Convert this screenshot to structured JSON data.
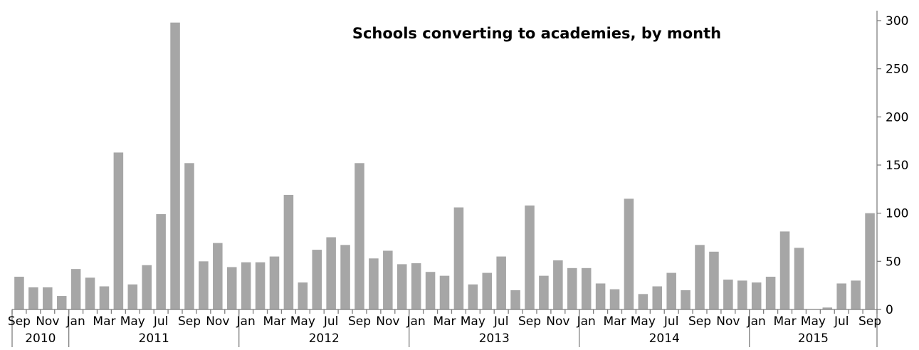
{
  "chart_data": {
    "type": "bar",
    "title": "Schools converting to academies, by month",
    "bar_color": "#a6a6a6",
    "axis_color": "#7f7f7f",
    "y_axis_position": "right",
    "grid": false,
    "legend": "none",
    "ylim": [
      0,
      300
    ],
    "yticks": [
      "0",
      "50",
      "100",
      "150",
      "200",
      "250",
      "300"
    ],
    "categories": [
      "Sep",
      "Oct",
      "Nov",
      "Dec",
      "Jan",
      "Feb",
      "Mar",
      "Apr",
      "May",
      "Jun",
      "Jul",
      "Aug",
      "Sep",
      "Oct",
      "Nov",
      "Dec",
      "Jan",
      "Feb",
      "Mar",
      "Apr",
      "May",
      "Jun",
      "Jul",
      "Aug",
      "Sep",
      "Oct",
      "Nov",
      "Dec",
      "Jan",
      "Feb",
      "Mar",
      "Apr",
      "May",
      "Jun",
      "Jul",
      "Aug",
      "Sep",
      "Oct",
      "Nov",
      "Dec",
      "Jan",
      "Feb",
      "Mar",
      "Apr",
      "May",
      "Jun",
      "Jul",
      "Aug",
      "Sep",
      "Oct",
      "Nov",
      "Dec",
      "Jan",
      "Feb",
      "Mar",
      "Apr",
      "May",
      "Jun",
      "Jul",
      "Aug",
      "Sep"
    ],
    "x_tick_labels": [
      "Sep",
      "",
      "Nov",
      "",
      "Jan",
      "",
      "Mar",
      "",
      "May",
      "",
      "Jul",
      "",
      "Sep",
      "",
      "Nov",
      "",
      "Jan",
      "",
      "Mar",
      "",
      "May",
      "",
      "Jul",
      "",
      "Sep",
      "",
      "Nov",
      "",
      "Jan",
      "",
      "Mar",
      "",
      "May",
      "",
      "Jul",
      "",
      "Sep",
      "",
      "Nov",
      "",
      "Jan",
      "",
      "Mar",
      "",
      "May",
      "",
      "Jul",
      "",
      "Sep",
      "",
      "Nov",
      "",
      "Jan",
      "",
      "Mar",
      "",
      "May",
      "",
      "Jul",
      "",
      "Sep"
    ],
    "years": [
      {
        "label": "2010",
        "months": 4
      },
      {
        "label": "2011",
        "months": 12
      },
      {
        "label": "2012",
        "months": 12
      },
      {
        "label": "2013",
        "months": 12
      },
      {
        "label": "2014",
        "months": 12
      },
      {
        "label": "2015",
        "months": 9
      }
    ],
    "values": [
      34,
      23,
      23,
      14,
      42,
      33,
      24,
      163,
      26,
      46,
      99,
      298,
      152,
      50,
      69,
      44,
      49,
      49,
      55,
      119,
      28,
      62,
      75,
      67,
      152,
      53,
      61,
      47,
      48,
      39,
      35,
      106,
      26,
      38,
      55,
      20,
      108,
      35,
      51,
      43,
      43,
      27,
      21,
      115,
      16,
      24,
      38,
      20,
      67,
      60,
      31,
      30,
      28,
      34,
      81,
      64,
      0,
      2,
      27,
      30,
      100
    ]
  }
}
